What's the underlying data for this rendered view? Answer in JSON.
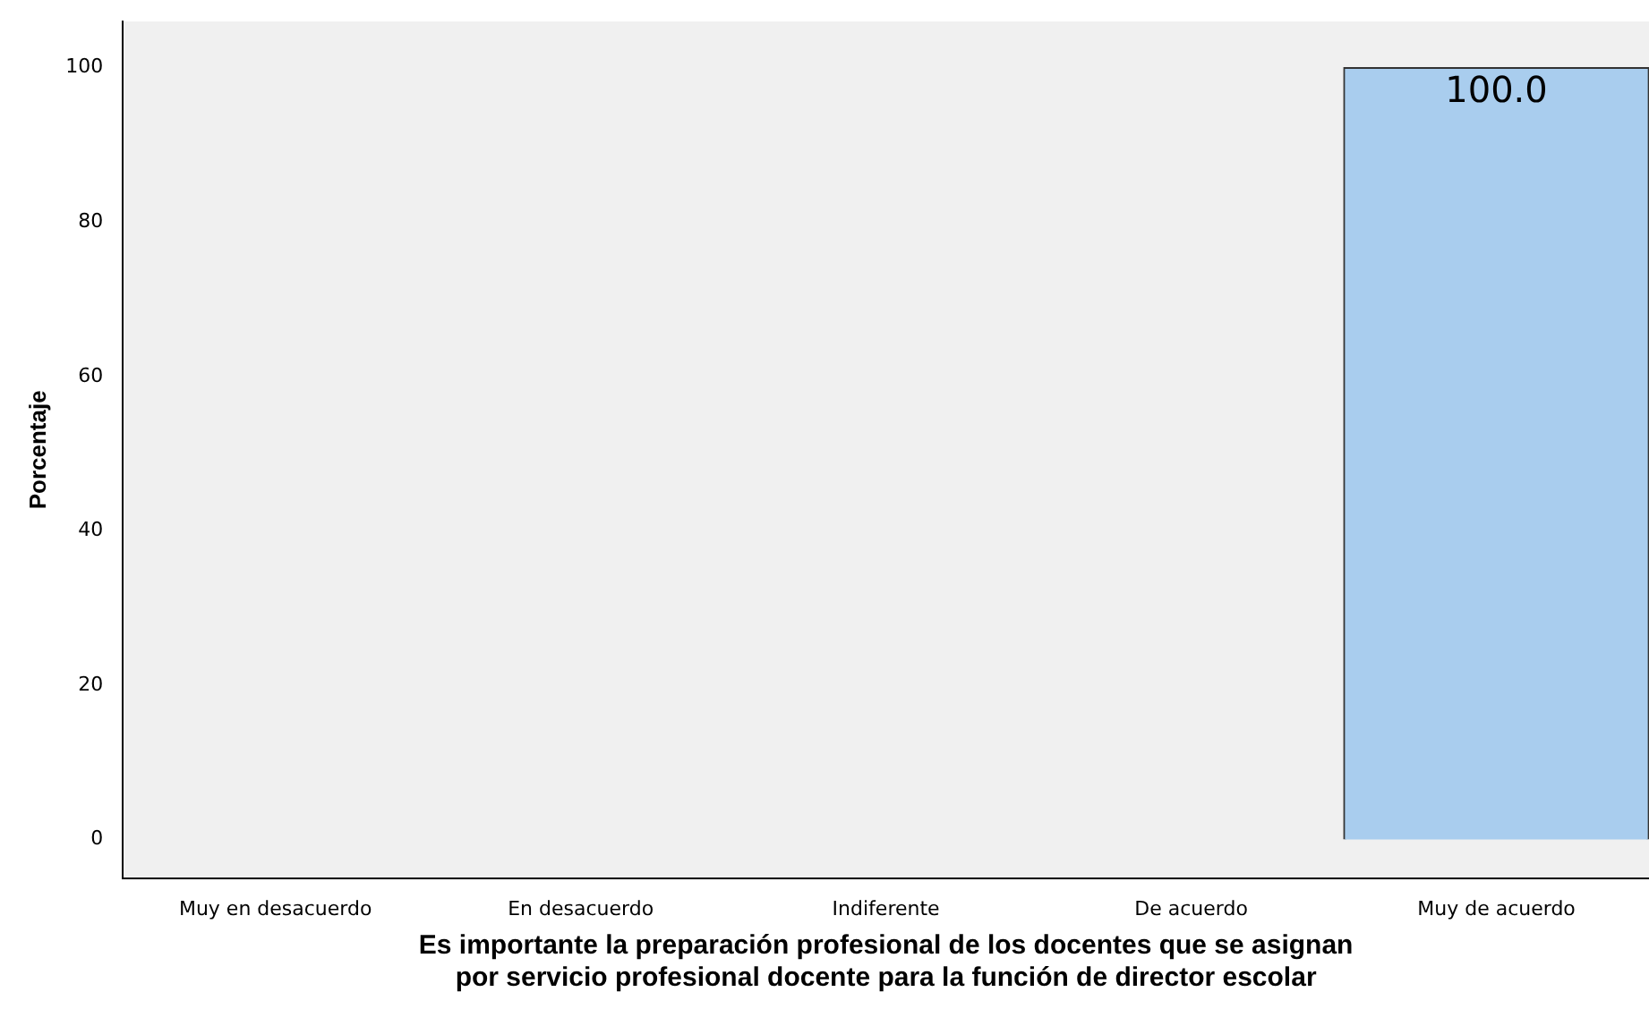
{
  "chart_data": {
    "type": "bar",
    "xlabel": "Es importante la preparación profesional de los docentes que se asignan\npor servicio profesional docente para la función de director escolar",
    "ylabel": "Porcentaje",
    "categories": [
      "Muy en desacuerdo",
      "En desacuerdo",
      "Indiferente",
      "De acuerdo",
      "Muy de acuerdo"
    ],
    "values": [
      0,
      0,
      0,
      0,
      100
    ],
    "value_labels": [
      null,
      null,
      null,
      null,
      "100.0"
    ],
    "color": "#a9cdee",
    "ylim": [
      -5,
      106
    ],
    "yticks": [
      0,
      20,
      40,
      60,
      80,
      100
    ],
    "grid": false,
    "legend": false
  }
}
